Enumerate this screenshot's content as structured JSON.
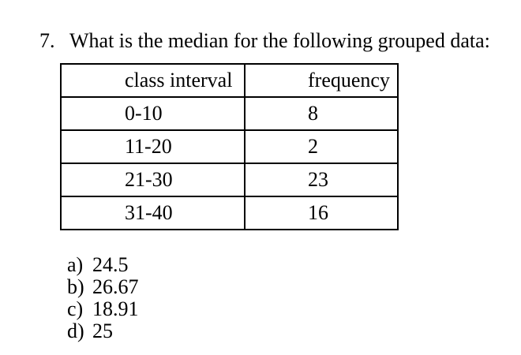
{
  "page": {
    "background_color": "#ffffff",
    "text_color": "#000000",
    "border_color": "#000000"
  },
  "question": {
    "number": "7.",
    "text": "What is the median for the following grouped data:"
  },
  "table": {
    "headers": [
      "class interval",
      "frequency"
    ],
    "rows": [
      [
        "0-10",
        "8"
      ],
      [
        "11-20",
        "2"
      ],
      [
        "21-30",
        "23"
      ],
      [
        "31-40",
        "16"
      ]
    ]
  },
  "options": [
    {
      "label": "a)",
      "value": "24.5"
    },
    {
      "label": "b)",
      "value": "26.67"
    },
    {
      "label": "c)",
      "value": "18.91"
    },
    {
      "label": "d)",
      "value": "25"
    }
  ]
}
